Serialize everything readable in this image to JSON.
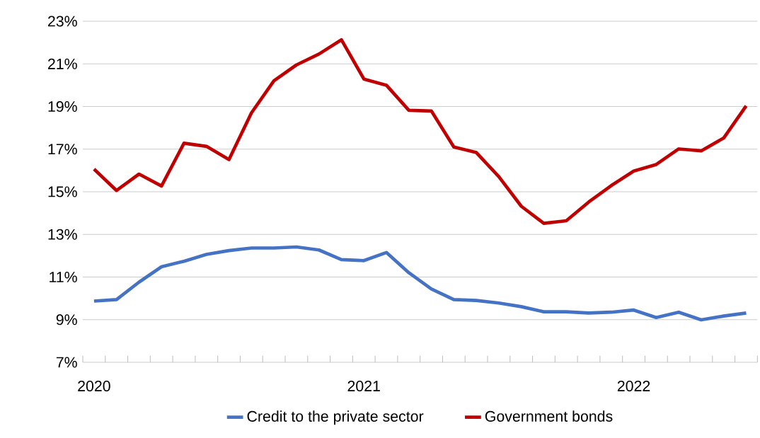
{
  "chart_data": {
    "type": "line",
    "categories": [
      "2020",
      null,
      null,
      null,
      null,
      null,
      null,
      null,
      null,
      null,
      null,
      null,
      "2021",
      null,
      null,
      null,
      null,
      null,
      null,
      null,
      null,
      null,
      null,
      null,
      "2022",
      null,
      null,
      null,
      null,
      null
    ],
    "series": [
      {
        "name": "Credit to the private sector",
        "color": "#4472c4",
        "values": [
          9.87,
          9.94,
          10.76,
          11.48,
          11.74,
          12.06,
          12.24,
          12.36,
          12.36,
          12.41,
          12.27,
          11.82,
          11.77,
          12.15,
          11.2,
          10.44,
          9.94,
          9.9,
          9.78,
          9.61,
          9.37,
          9.37,
          9.31,
          9.35,
          9.45,
          9.1,
          9.35,
          8.99,
          9.17,
          9.31
        ]
      },
      {
        "name": "Government bonds",
        "color": "#c00000",
        "values": [
          16.06,
          15.06,
          15.83,
          15.27,
          17.28,
          17.13,
          16.51,
          18.7,
          20.21,
          20.95,
          21.46,
          22.13,
          20.29,
          20.0,
          18.82,
          18.79,
          17.1,
          16.84,
          15.71,
          14.32,
          13.52,
          13.64,
          14.52,
          15.29,
          15.97,
          16.28,
          17.01,
          16.92,
          17.52,
          19.03
        ]
      }
    ],
    "ylim": [
      7,
      23
    ],
    "yticks": [
      {
        "value": 7,
        "label": "7%"
      },
      {
        "value": 9,
        "label": "9%"
      },
      {
        "value": 11,
        "label": "11%"
      },
      {
        "value": 13,
        "label": "13%"
      },
      {
        "value": 15,
        "label": "15%"
      },
      {
        "value": 17,
        "label": "17%"
      },
      {
        "value": 19,
        "label": "19%"
      },
      {
        "value": 21,
        "label": "21%"
      },
      {
        "value": 23,
        "label": "23%"
      }
    ],
    "grid": "y",
    "legend": "bottom",
    "marker": "none",
    "line_style": "solid"
  }
}
